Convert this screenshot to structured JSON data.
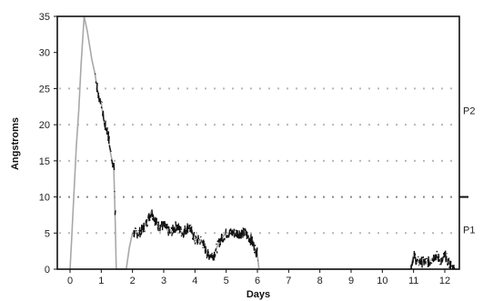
{
  "chart_data": {
    "type": "line",
    "xlabel": "Days",
    "ylabel": "Angstroms",
    "xlim": [
      0,
      13
    ],
    "ylim": [
      0,
      35
    ],
    "x_ticks": [
      "0",
      "1",
      "2",
      "3",
      "4",
      "5",
      "6",
      "7",
      "8",
      "9",
      "10",
      "11",
      "12"
    ],
    "y_ticks": [
      "0",
      "5",
      "10",
      "15",
      "20",
      "25",
      "30",
      "35"
    ],
    "grid": "dotted horizontal at 5, 15, 20, 25",
    "reference_line": {
      "y": 10,
      "style": "dotted",
      "marker_right": true
    },
    "side_labels": [
      {
        "text": "P2",
        "y": 22
      },
      {
        "text": "P1",
        "y": 5.5
      }
    ],
    "series": [
      {
        "line_color": "#a8a8a8",
        "noise_color": "#111111",
        "points": [
          [
            0,
            0
          ],
          [
            0.05,
            4
          ],
          [
            0.12,
            10
          ],
          [
            0.2,
            17
          ],
          [
            0.28,
            22
          ],
          [
            0.35,
            28
          ],
          [
            0.45,
            35
          ],
          [
            0.55,
            33
          ],
          [
            0.7,
            29
          ],
          [
            0.8,
            27
          ],
          [
            0.9,
            24
          ],
          [
            1.0,
            23
          ],
          [
            1.1,
            20
          ],
          [
            1.2,
            19
          ],
          [
            1.3,
            16
          ],
          [
            1.4,
            14
          ],
          [
            1.45,
            6
          ],
          [
            1.48,
            0
          ],
          [
            1.8,
            0
          ],
          [
            1.9,
            3
          ],
          [
            2.0,
            5
          ],
          [
            2.2,
            5
          ],
          [
            2.4,
            6
          ],
          [
            2.6,
            8
          ],
          [
            2.8,
            6
          ],
          [
            3.0,
            6
          ],
          [
            3.2,
            5
          ],
          [
            3.4,
            6
          ],
          [
            3.6,
            5
          ],
          [
            3.8,
            6
          ],
          [
            4.0,
            4
          ],
          [
            4.2,
            4
          ],
          [
            4.4,
            2
          ],
          [
            4.6,
            2
          ],
          [
            4.8,
            4
          ],
          [
            5.0,
            5
          ],
          [
            5.2,
            5
          ],
          [
            5.4,
            5
          ],
          [
            5.6,
            5
          ],
          [
            5.8,
            4
          ],
          [
            6.0,
            2
          ],
          [
            6.05,
            0
          ],
          [
            10.9,
            0
          ],
          [
            11.0,
            2
          ],
          [
            11.1,
            1
          ],
          [
            11.3,
            1
          ],
          [
            11.5,
            1
          ],
          [
            11.7,
            2
          ],
          [
            11.9,
            1
          ],
          [
            12.0,
            2
          ],
          [
            12.1,
            1
          ],
          [
            12.3,
            0
          ]
        ],
        "noise_ranges": [
          [
            0.8,
            1.45
          ],
          [
            2.0,
            6.0
          ],
          [
            10.9,
            12.3
          ]
        ]
      }
    ]
  }
}
